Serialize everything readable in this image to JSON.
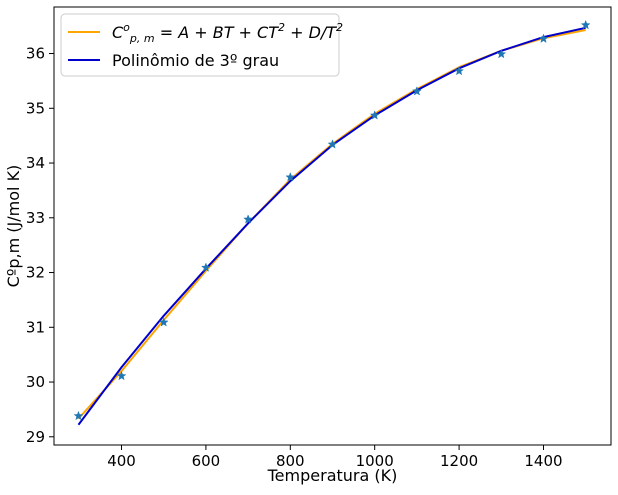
{
  "chart_data": {
    "type": "line",
    "title": "",
    "xlabel": "Temperatura (K)",
    "ylabel": "Cºp,m (J/mol K)",
    "xlim": [
      240,
      1560
    ],
    "ylim": [
      28.85,
      36.85
    ],
    "xticks": [
      400,
      600,
      800,
      1000,
      1200,
      1400
    ],
    "yticks": [
      29,
      30,
      31,
      32,
      33,
      34,
      35,
      36
    ],
    "grid": false,
    "legend_position": "top-left",
    "legend": {
      "fit_name_pre": "C",
      "fit_name_sup": "o",
      "fit_name_sub": "p, m",
      "fit_name_post": " = A + BT + CT",
      "fit_name_post_sup": "2",
      "fit_name_tail": " + D/T",
      "fit_name_tail_sup": "2",
      "poly_name": "Polinômio de 3º grau"
    },
    "series": [
      {
        "kind": "markers",
        "marker": "star",
        "color": "#1f77b4",
        "x": [
          298,
          400,
          500,
          600,
          700,
          800,
          900,
          1000,
          1100,
          1200,
          1300,
          1400,
          1500
        ],
        "y": [
          29.38,
          30.11,
          31.09,
          32.09,
          32.97,
          33.74,
          34.34,
          34.87,
          35.31,
          35.68,
          35.99,
          36.27,
          36.52
        ]
      },
      {
        "kind": "line",
        "color": "#ffa500",
        "x": [
          298,
          400,
          500,
          600,
          700,
          800,
          900,
          1000,
          1100,
          1200,
          1300,
          1400,
          1500
        ],
        "y": [
          29.33,
          30.2,
          31.13,
          32.03,
          32.9,
          33.7,
          34.35,
          34.9,
          35.35,
          35.75,
          36.05,
          36.28,
          36.43
        ]
      },
      {
        "kind": "line",
        "color": "#0000cc",
        "x": [
          298,
          400,
          500,
          600,
          700,
          800,
          900,
          1000,
          1100,
          1200,
          1300,
          1400,
          1500
        ],
        "y": [
          29.22,
          30.27,
          31.21,
          32.07,
          32.9,
          33.67,
          34.33,
          34.87,
          35.33,
          35.73,
          36.05,
          36.3,
          36.47
        ]
      }
    ]
  }
}
